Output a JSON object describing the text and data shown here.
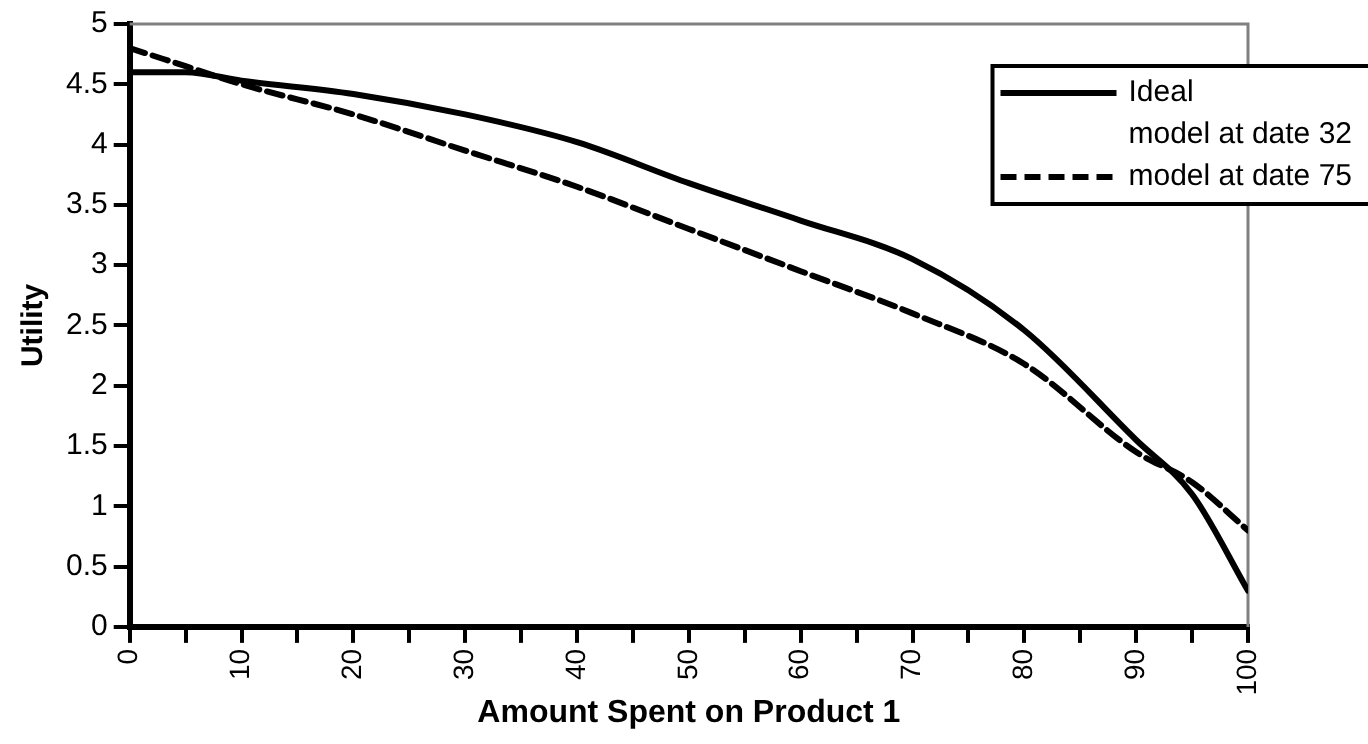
{
  "chart_data": {
    "type": "line",
    "xlabel": "Amount Spent on Product 1",
    "ylabel": "Utility",
    "x": [
      0,
      5,
      10,
      20,
      30,
      40,
      50,
      60,
      70,
      80,
      90,
      95,
      100
    ],
    "series": [
      {
        "name": "Ideal",
        "color": "#000000",
        "line_style": "solid",
        "values": [
          4.6,
          4.6,
          4.53,
          4.42,
          4.25,
          4.02,
          3.68,
          3.37,
          3.05,
          2.46,
          1.55,
          1.1,
          0.3
        ]
      },
      {
        "name": "model at date 32",
        "values": [
          null,
          null,
          null,
          null,
          null,
          null,
          null,
          null,
          null,
          null,
          null,
          null,
          null
        ]
      },
      {
        "name": "model at date 75",
        "color": "#000000",
        "line_style": "dashed",
        "values": [
          4.8,
          4.65,
          4.5,
          4.25,
          3.95,
          3.65,
          3.3,
          2.95,
          2.6,
          2.18,
          1.45,
          1.2,
          0.8
        ]
      }
    ],
    "xlim": [
      0,
      100
    ],
    "xticks": [
      0,
      {
        "value": 5,
        "label": null
      },
      10,
      {
        "value": 15,
        "label": null
      },
      20,
      {
        "value": 25,
        "label": null
      },
      30,
      {
        "value": 35,
        "label": null
      },
      40,
      {
        "value": 45,
        "label": null
      },
      50,
      {
        "value": 55,
        "label": null
      },
      60,
      {
        "value": 65,
        "label": null
      },
      70,
      {
        "value": 75,
        "label": null
      },
      80,
      {
        "value": 85,
        "label": null
      },
      90,
      {
        "value": 95,
        "label": null
      },
      100
    ],
    "ylim": [
      0,
      5
    ],
    "yticks": [
      0,
      0.5,
      1,
      1.5,
      2,
      2.5,
      3,
      3.5,
      4,
      4.5,
      5
    ],
    "grid": false,
    "legend": "top right",
    "marker": "none"
  }
}
